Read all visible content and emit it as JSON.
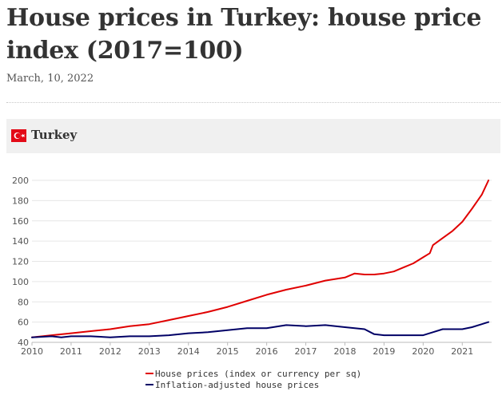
{
  "header": {
    "title": "House prices in Turkey: house price index (2017=100)",
    "date": "March, 10, 2022"
  },
  "country": {
    "name": "Turkey",
    "flag_icon": "turkey-flag-icon",
    "flag_color": "#e30a17"
  },
  "chart_data": {
    "type": "line",
    "title": "",
    "xlabel": "",
    "ylabel": "",
    "xlim": [
      2010,
      2021.75
    ],
    "ylim": [
      40,
      200
    ],
    "y_ticks": [
      40,
      60,
      80,
      100,
      120,
      140,
      160,
      180,
      200
    ],
    "x_ticks": [
      2010,
      2011,
      2012,
      2013,
      2014,
      2015,
      2016,
      2017,
      2018,
      2019,
      2020,
      2021
    ],
    "grid": "horizontal",
    "legend_position": "bottom",
    "series": [
      {
        "name": "House prices (index or currency per sq)",
        "color": "#e00000",
        "x": [
          2010.0,
          2010.5,
          2011.0,
          2011.5,
          2012.0,
          2012.5,
          2013.0,
          2013.5,
          2014.0,
          2014.5,
          2015.0,
          2015.5,
          2016.0,
          2016.5,
          2017.0,
          2017.5,
          2018.0,
          2018.25,
          2018.5,
          2018.75,
          2019.0,
          2019.25,
          2019.5,
          2019.75,
          2020.0,
          2020.17,
          2020.25,
          2020.5,
          2020.75,
          2021.0,
          2021.25,
          2021.5,
          2021.67
        ],
        "values": [
          45,
          47,
          49,
          51,
          53,
          56,
          58,
          62,
          66,
          70,
          75,
          81,
          87,
          92,
          96,
          101,
          104,
          108,
          107,
          107,
          108,
          110,
          114,
          118,
          124,
          128,
          136,
          143,
          150,
          159,
          172,
          186,
          200
        ]
      },
      {
        "name": "Inflation-adjusted house prices",
        "color": "#000066",
        "x": [
          2010.0,
          2010.5,
          2010.75,
          2011.0,
          2011.5,
          2012.0,
          2012.5,
          2013.0,
          2013.5,
          2014.0,
          2014.5,
          2015.0,
          2015.5,
          2016.0,
          2016.5,
          2017.0,
          2017.5,
          2018.0,
          2018.5,
          2018.75,
          2019.0,
          2019.5,
          2020.0,
          2020.25,
          2020.5,
          2021.0,
          2021.25,
          2021.5,
          2021.67
        ],
        "values": [
          45,
          46,
          45,
          46,
          46,
          45,
          46,
          46,
          47,
          49,
          50,
          52,
          54,
          54,
          57,
          56,
          57,
          55,
          53,
          48,
          47,
          47,
          47,
          50,
          53,
          53,
          55,
          58,
          60
        ]
      }
    ]
  }
}
